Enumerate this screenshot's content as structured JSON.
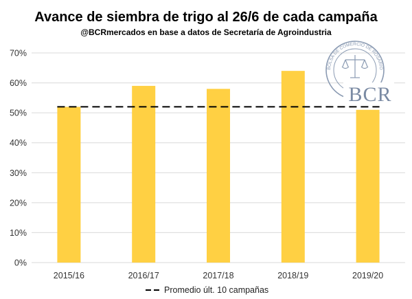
{
  "chart_data": {
    "type": "bar",
    "title": "Avance de siembra de trigo al 26/6 de cada campaña",
    "subtitle": "@BCRmercados en base a datos de Secretaría de Agroindustria",
    "categories": [
      "2015/16",
      "2016/17",
      "2017/18",
      "2018/19",
      "2019/20"
    ],
    "series": [
      {
        "values": [
          52,
          59,
          58,
          64,
          51
        ]
      }
    ],
    "reference_line": {
      "name": "Promedio últ. 10 campañas",
      "value": 52
    },
    "ylim": [
      0,
      70
    ],
    "yticks": [
      0,
      10,
      20,
      30,
      40,
      50,
      60,
      70
    ],
    "ytick_labels": [
      "0%",
      "10%",
      "20%",
      "30%",
      "40%",
      "50%",
      "60%",
      "70%"
    ],
    "grid": true,
    "legend_placement": "bottom-center",
    "colors": {
      "bar": "#FFD043",
      "reference_line": "#000000",
      "grid": "#d9d9d9"
    }
  },
  "logo": {
    "text": "BCR",
    "ring_text": "BOLSA DE COMERCIO DE ROSARIO"
  }
}
